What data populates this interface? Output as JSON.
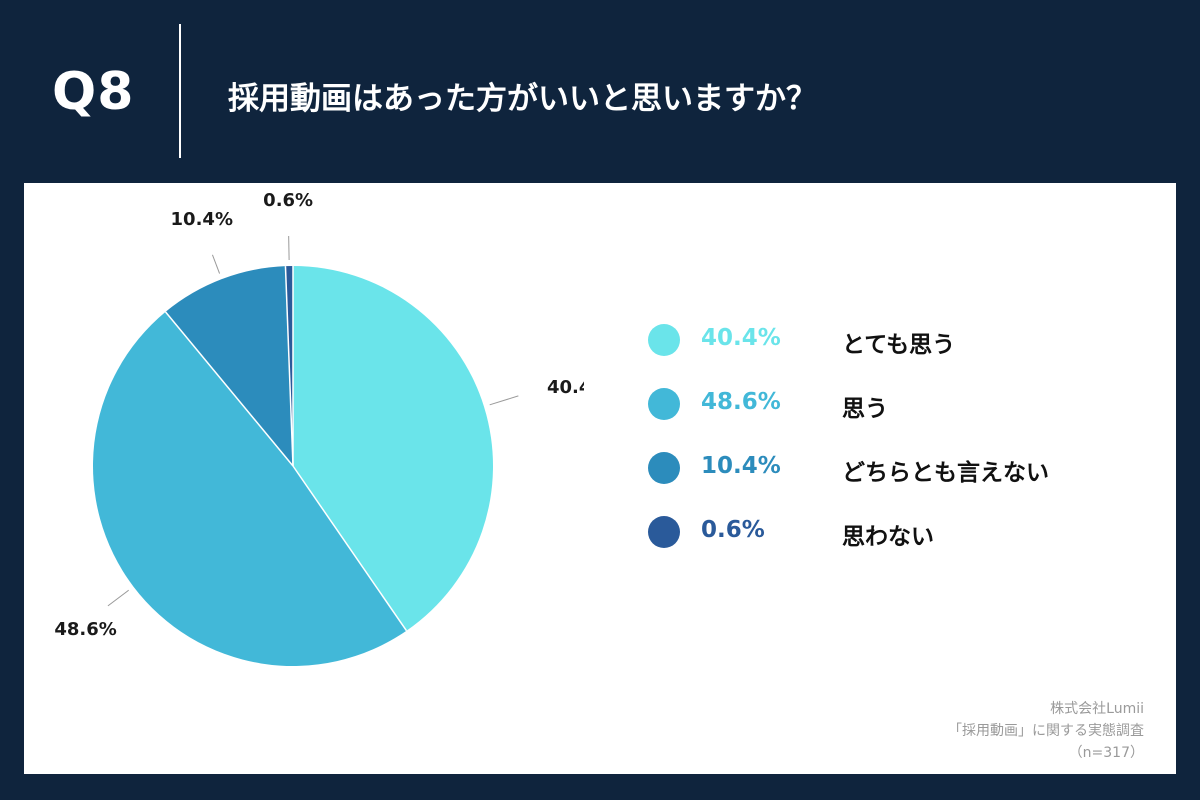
{
  "header": {
    "qnum": "Q8",
    "question": "採用動画はあった方がいいと思いますか？"
  },
  "colors": {
    "background": "#0f243d",
    "panel": "#ffffff"
  },
  "chart_data": {
    "type": "pie",
    "title": "採用動画はあった方がいいと思いますか？",
    "categories": [
      "とても思う",
      "思う",
      "どちらとも言えない",
      "思わない"
    ],
    "values": [
      40.4,
      48.6,
      10.4,
      0.6
    ],
    "value_labels": [
      "40.4%",
      "48.6%",
      "10.4%",
      "0.6%"
    ],
    "colors": [
      "#6ae4ea",
      "#42b8d8",
      "#2c8cbc",
      "#2a5a9a"
    ],
    "start": "top",
    "direction": "clockwise",
    "legend_position": "right"
  },
  "source": {
    "line1": "株式会社Lumii",
    "line2": "「採用動画」に関する実態調査",
    "line3": "（n=317）"
  }
}
